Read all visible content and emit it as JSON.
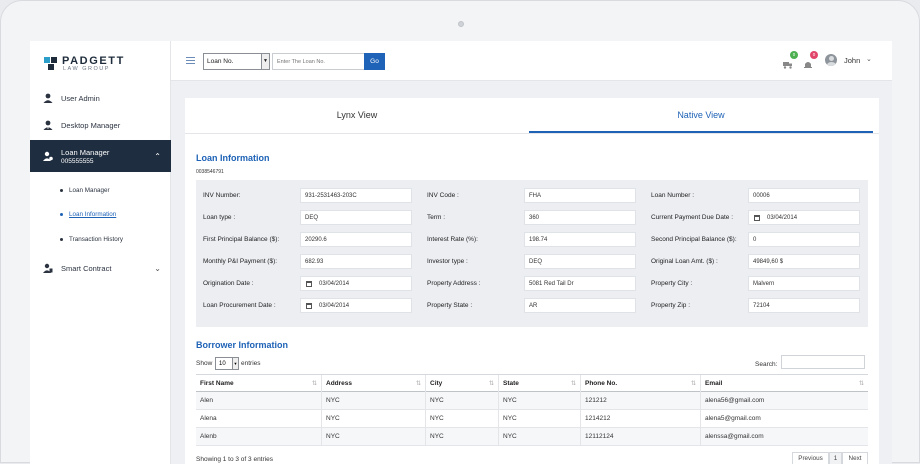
{
  "brand": {
    "name": "PADGETT",
    "sub": "LAW GROUP"
  },
  "sidebar": {
    "items": [
      {
        "label": "User Admin",
        "icon": "user-icon"
      },
      {
        "label": "Desktop Manager",
        "icon": "user-tie-icon"
      },
      {
        "label": "Loan Manager",
        "sub": "005555555",
        "icon": "user-money-icon"
      },
      {
        "label": "Smart Contract",
        "icon": "user-contract-icon"
      }
    ],
    "subitems": [
      "Loan Manager",
      "Loan Information",
      "Transaction History"
    ]
  },
  "topbar": {
    "select_value": "Loan No.",
    "search_placeholder": "Enter The Loan No.",
    "go_label": "Go",
    "badges": [
      "0",
      "0"
    ],
    "user": "John"
  },
  "tabs": [
    "Lynx View",
    "Native View"
  ],
  "loan": {
    "title": "Loan Information",
    "number": "0038546791",
    "fields": [
      [
        {
          "label": "INV Number:",
          "value": "931-2531463-203C"
        },
        {
          "label": "INV Code :",
          "value": "FHA"
        },
        {
          "label": "Loan Number :",
          "value": "00006"
        }
      ],
      [
        {
          "label": "Loan type :",
          "value": "DEQ"
        },
        {
          "label": "Term :",
          "value": "360"
        },
        {
          "label": "Current Payment Due Date :",
          "value": "03/04/2014"
        }
      ],
      [
        {
          "label": "First Principal Balance ($):",
          "value": "20290.6"
        },
        {
          "label": "Interest Rate (%):",
          "value": "198.74"
        },
        {
          "label": "Second Principal Balance ($):",
          "value": "0"
        }
      ],
      [
        {
          "label": "Monthly P&I Payment ($):",
          "value": "682.93"
        },
        {
          "label": "Investor type :",
          "value": "DEQ"
        },
        {
          "label": "Original Loan Amt. ($) :",
          "value": "49849,60 $"
        }
      ],
      [
        {
          "label": "Origination Date :",
          "value": "03/04/2014"
        },
        {
          "label": "Property Address :",
          "value": "5081 Red Tail Dr"
        },
        {
          "label": "Property City :",
          "value": "Malvern"
        }
      ],
      [
        {
          "label": "Loan Procurement Date :",
          "value": "03/04/2014"
        },
        {
          "label": "Property State :",
          "value": "AR"
        },
        {
          "label": "Property Zip :",
          "value": "72104"
        }
      ]
    ]
  },
  "borrower": {
    "title": "Borrower Information",
    "show_label": "Show",
    "entries_value": "10",
    "entries_label": "entries",
    "search_label": "Search:",
    "columns": [
      "First Name",
      "Address",
      "City",
      "State",
      "Phone No.",
      "Email"
    ],
    "rows": [
      [
        "Alen",
        "NYC",
        "NYC",
        "NYC",
        "121212",
        "alena56@gmail.com"
      ],
      [
        "Alena",
        "NYC",
        "NYC",
        "NYC",
        "1214212",
        "alena5@gmail.com"
      ],
      [
        "Alenb",
        "NYC",
        "NYC",
        "NYC",
        "12112124",
        "alenssa@gmail.com"
      ]
    ],
    "showing": "Showing 1 to 3 of 3 entries",
    "pager": [
      "Previous",
      "1",
      "Next"
    ]
  }
}
